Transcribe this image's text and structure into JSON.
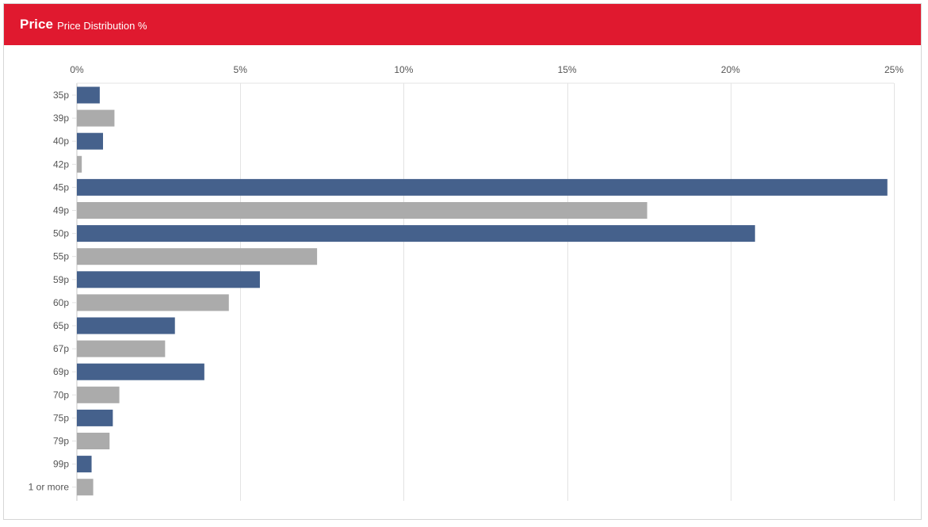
{
  "header": {
    "title": "Price",
    "subtitle": "Price Distribution %"
  },
  "colors": {
    "header_bg": "#e0192f",
    "bar_primary": "#45618c",
    "bar_secondary": "#ababab",
    "grid": "#e3e3e3"
  },
  "chart_data": {
    "type": "bar",
    "orientation": "horizontal",
    "title": "",
    "xlabel": "",
    "ylabel": "",
    "xlim": [
      0,
      25
    ],
    "x_ticks": [
      0,
      5,
      10,
      15,
      20,
      25
    ],
    "x_tick_labels": [
      "0%",
      "5%",
      "10%",
      "15%",
      "20%",
      "25%"
    ],
    "x_axis_position": "top",
    "grid": true,
    "categories": [
      "35p",
      "39p",
      "40p",
      "42p",
      "45p",
      "49p",
      "50p",
      "55p",
      "59p",
      "60p",
      "65p",
      "67p",
      "69p",
      "70p",
      "75p",
      "79p",
      "99p",
      "1 or more"
    ],
    "values": [
      0.7,
      1.15,
      0.8,
      0.15,
      24.8,
      17.45,
      20.75,
      7.35,
      5.6,
      4.65,
      3.0,
      2.7,
      3.9,
      1.3,
      1.1,
      1.0,
      0.45,
      0.5
    ],
    "bar_colors": [
      "#45618c",
      "#ababab",
      "#45618c",
      "#ababab",
      "#45618c",
      "#ababab",
      "#45618c",
      "#ababab",
      "#45618c",
      "#ababab",
      "#45618c",
      "#ababab",
      "#45618c",
      "#ababab",
      "#45618c",
      "#ababab",
      "#45618c",
      "#ababab"
    ]
  }
}
